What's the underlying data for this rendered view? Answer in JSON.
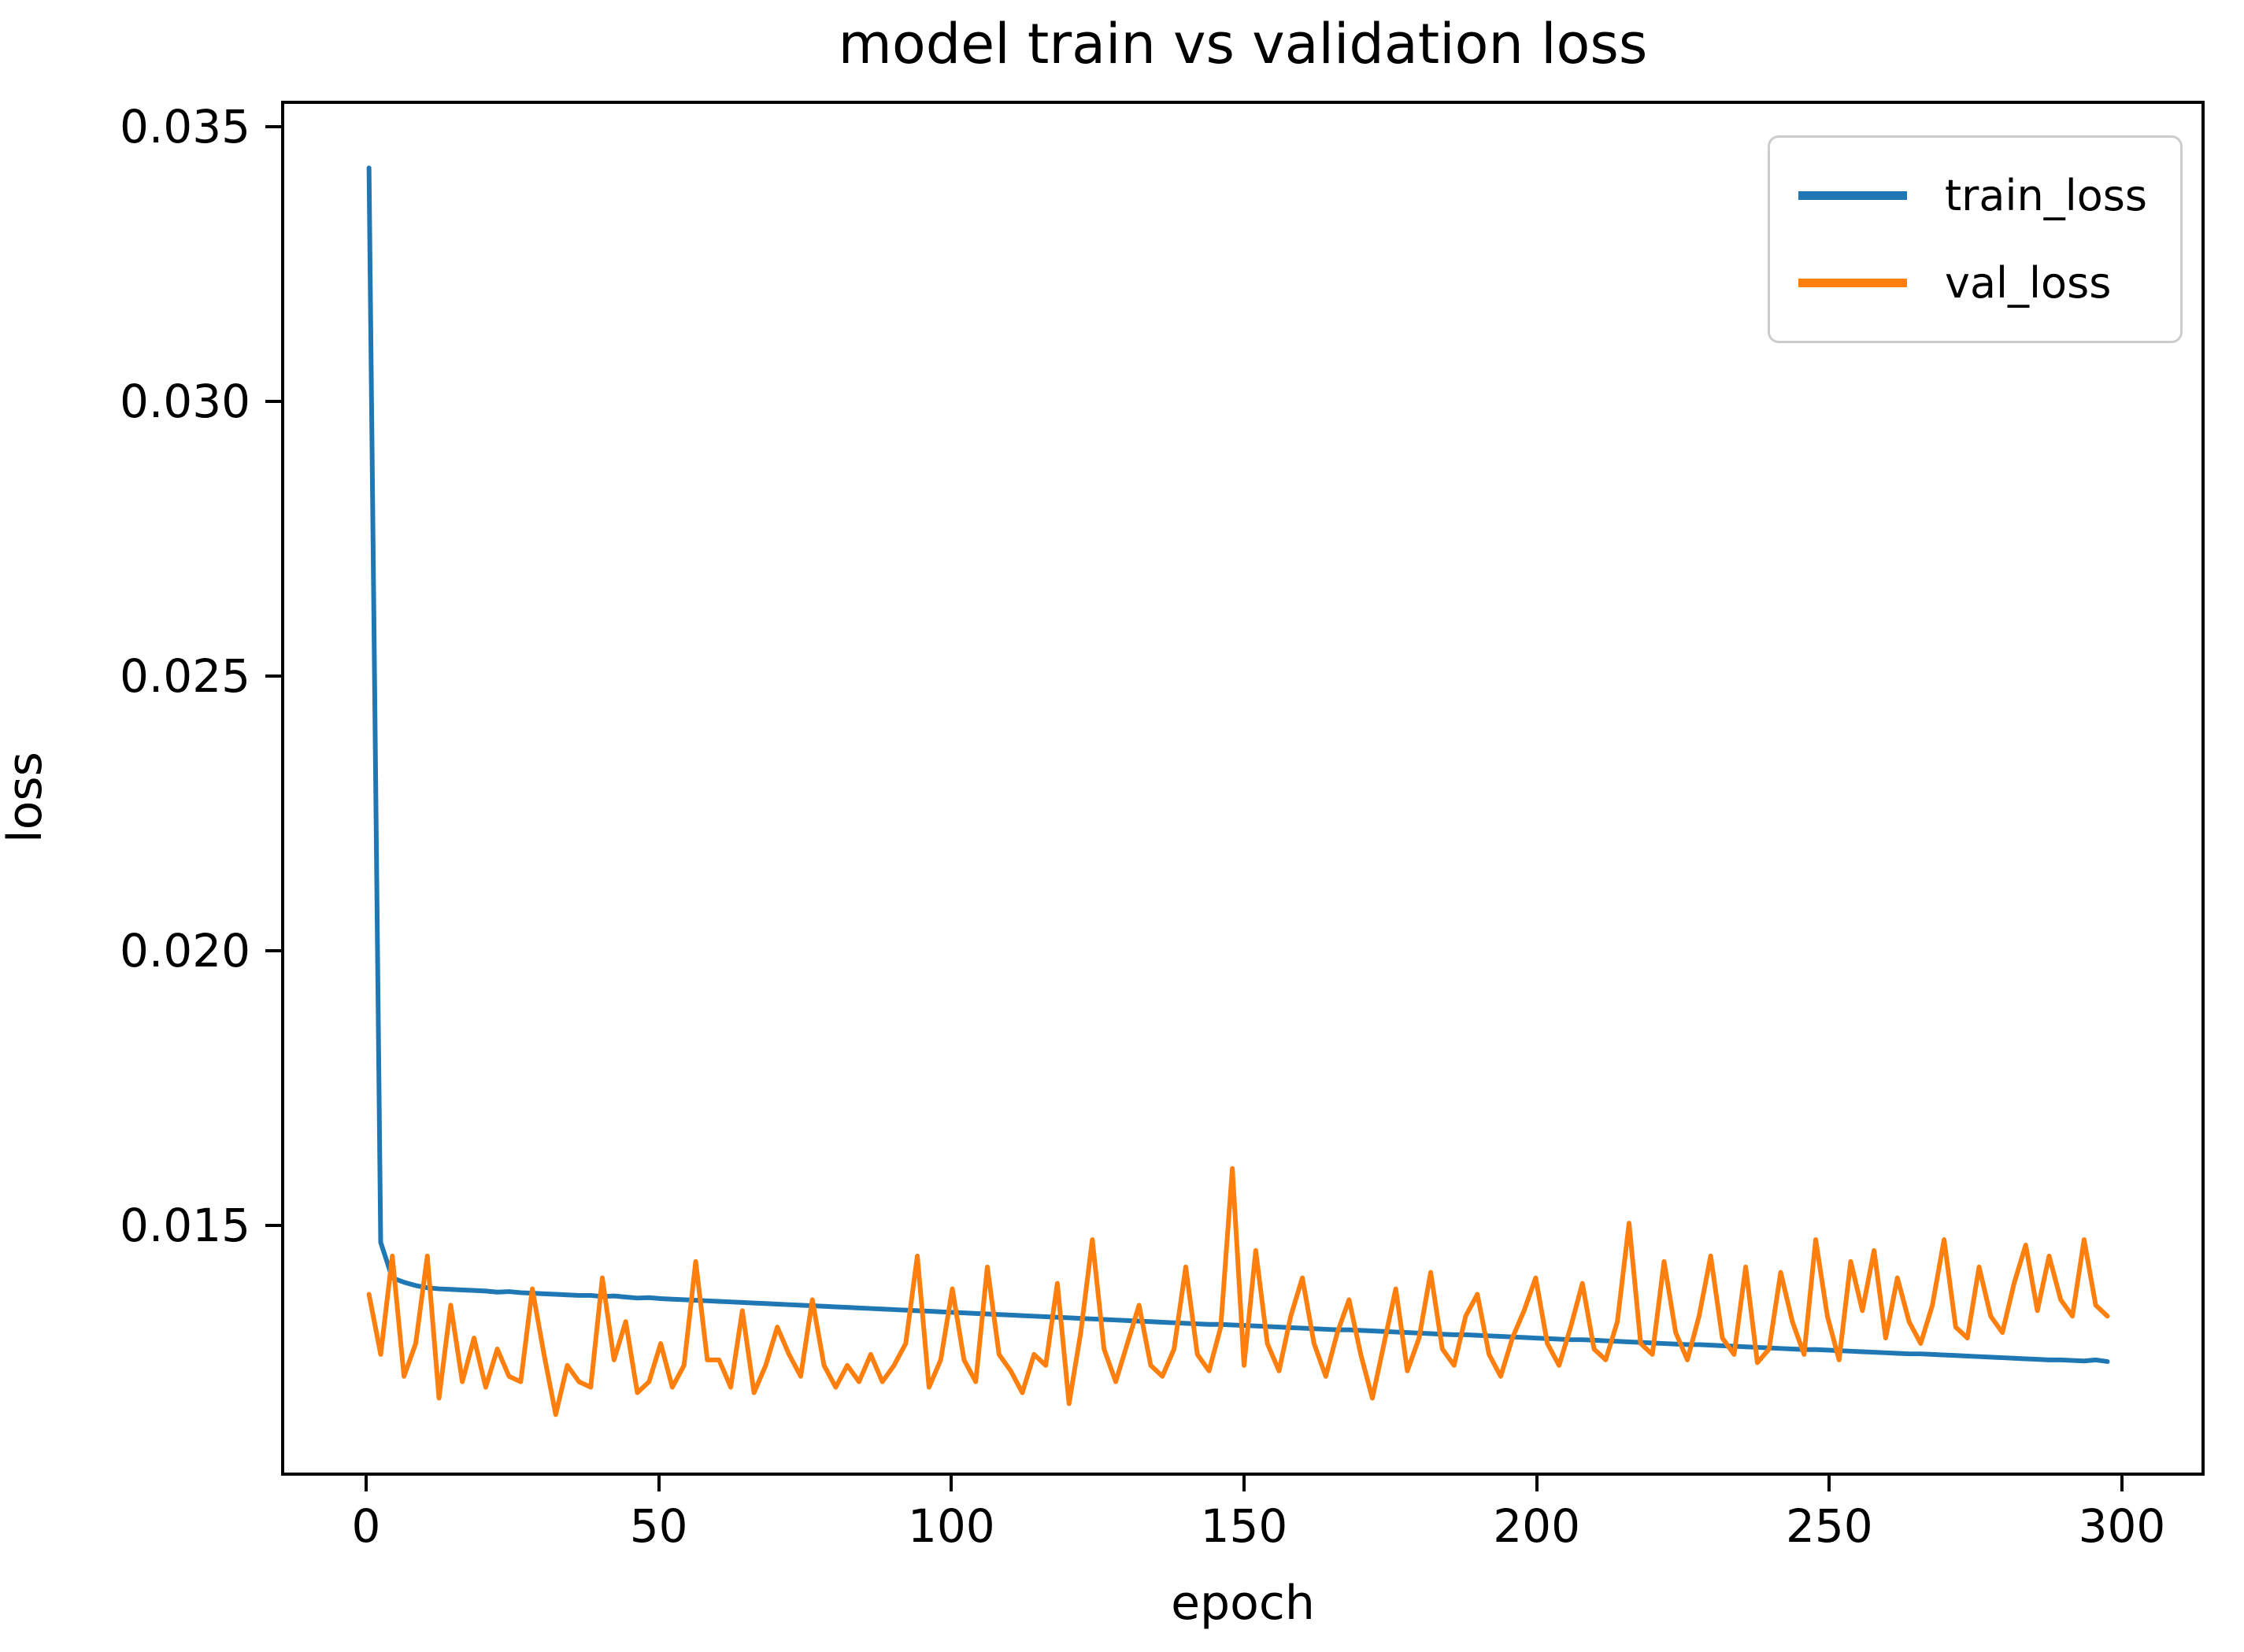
{
  "figure": {
    "title": "model train vs validation loss"
  },
  "chart_data": {
    "type": "line",
    "title": "model train vs validation loss",
    "xlabel": "epoch",
    "ylabel": "loss",
    "xlim": [
      -14.53,
      314.13
    ],
    "ylim": [
      0.01044,
      0.03547
    ],
    "x_ticks": [
      0,
      50,
      100,
      150,
      200,
      250,
      300
    ],
    "x_tick_labels": [
      "0",
      "50",
      "100",
      "150",
      "200",
      "250",
      "300"
    ],
    "y_ticks": [
      0.035,
      0.03,
      0.025,
      0.02,
      0.015
    ],
    "y_tick_labels": [
      "0.035",
      "0.030",
      "0.025",
      "0.020",
      "0.015"
    ],
    "grid": false,
    "legend_position": "upper right",
    "x": [
      0,
      2,
      4,
      6,
      8,
      10,
      12,
      14,
      16,
      18,
      20,
      22,
      24,
      26,
      28,
      30,
      32,
      34,
      36,
      38,
      40,
      42,
      44,
      46,
      48,
      50,
      52,
      54,
      56,
      58,
      60,
      62,
      64,
      66,
      68,
      70,
      72,
      74,
      76,
      78,
      80,
      82,
      84,
      86,
      88,
      90,
      92,
      94,
      96,
      98,
      100,
      102,
      104,
      106,
      108,
      110,
      112,
      114,
      116,
      118,
      120,
      122,
      124,
      126,
      128,
      130,
      132,
      134,
      136,
      138,
      140,
      142,
      144,
      146,
      148,
      150,
      152,
      154,
      156,
      158,
      160,
      162,
      164,
      166,
      168,
      170,
      172,
      174,
      176,
      178,
      180,
      182,
      184,
      186,
      188,
      190,
      192,
      194,
      196,
      198,
      200,
      202,
      204,
      206,
      208,
      210,
      212,
      214,
      216,
      218,
      220,
      222,
      224,
      226,
      228,
      230,
      232,
      234,
      236,
      238,
      240,
      242,
      244,
      246,
      248,
      250,
      252,
      254,
      256,
      258,
      260,
      262,
      264,
      266,
      268,
      270,
      272,
      274,
      276,
      278,
      280,
      282,
      284,
      286,
      288,
      290,
      292,
      294,
      296,
      298
    ],
    "series": [
      {
        "name": "train_loss",
        "color": "#1f77b4",
        "values": [
          0.0343,
          0.01465,
          0.014,
          0.01392,
          0.01386,
          0.01382,
          0.0138,
          0.01379,
          0.01378,
          0.01377,
          0.01376,
          0.01374,
          0.01375,
          0.01373,
          0.01372,
          0.01371,
          0.0137,
          0.01369,
          0.01368,
          0.01368,
          0.01366,
          0.01367,
          0.01365,
          0.01363,
          0.01364,
          0.01362,
          0.01361,
          0.0136,
          0.01359,
          0.01358,
          0.01357,
          0.01356,
          0.01355,
          0.01354,
          0.01353,
          0.01352,
          0.01351,
          0.0135,
          0.01349,
          0.01348,
          0.01347,
          0.01346,
          0.01345,
          0.01344,
          0.01343,
          0.01342,
          0.01341,
          0.0134,
          0.01339,
          0.01338,
          0.01337,
          0.01336,
          0.01335,
          0.01334,
          0.01333,
          0.01332,
          0.01331,
          0.0133,
          0.01329,
          0.01328,
          0.01327,
          0.01326,
          0.01325,
          0.01324,
          0.01323,
          0.01322,
          0.01321,
          0.0132,
          0.01319,
          0.01318,
          0.01317,
          0.01316,
          0.01315,
          0.01315,
          0.01314,
          0.01313,
          0.01312,
          0.01311,
          0.0131,
          0.01309,
          0.01308,
          0.01307,
          0.01306,
          0.01305,
          0.01305,
          0.01304,
          0.01303,
          0.01302,
          0.01301,
          0.013,
          0.01299,
          0.01298,
          0.01297,
          0.01296,
          0.01296,
          0.01295,
          0.01294,
          0.01293,
          0.01292,
          0.01291,
          0.0129,
          0.01289,
          0.01288,
          0.01287,
          0.01287,
          0.01286,
          0.01285,
          0.01284,
          0.01283,
          0.01282,
          0.01281,
          0.0128,
          0.01279,
          0.01278,
          0.01278,
          0.01277,
          0.01276,
          0.01275,
          0.01274,
          0.01273,
          0.01272,
          0.01271,
          0.0127,
          0.01269,
          0.01269,
          0.01268,
          0.01267,
          0.01266,
          0.01265,
          0.01264,
          0.01263,
          0.01262,
          0.01261,
          0.01261,
          0.0126,
          0.01259,
          0.01258,
          0.01257,
          0.01256,
          0.01255,
          0.01254,
          0.01253,
          0.01252,
          0.01251,
          0.0125,
          0.0125,
          0.01249,
          0.01248,
          0.0125,
          0.01247
        ]
      },
      {
        "name": "val_loss",
        "color": "#ff7f0e",
        "values": [
          0.0137,
          0.0126,
          0.0144,
          0.0122,
          0.0128,
          0.0144,
          0.0118,
          0.0135,
          0.0121,
          0.0129,
          0.012,
          0.0127,
          0.0122,
          0.0121,
          0.0138,
          0.0126,
          0.0115,
          0.0124,
          0.0121,
          0.012,
          0.014,
          0.0125,
          0.0132,
          0.0119,
          0.0121,
          0.0128,
          0.012,
          0.0124,
          0.0143,
          0.0125,
          0.0125,
          0.012,
          0.0134,
          0.0119,
          0.0124,
          0.0131,
          0.0126,
          0.0122,
          0.0136,
          0.0124,
          0.012,
          0.0124,
          0.0121,
          0.0126,
          0.0121,
          0.0124,
          0.0128,
          0.0144,
          0.012,
          0.0125,
          0.0138,
          0.0125,
          0.0121,
          0.0142,
          0.0126,
          0.0123,
          0.0119,
          0.0126,
          0.0124,
          0.0139,
          0.0117,
          0.013,
          0.0147,
          0.0127,
          0.0121,
          0.0128,
          0.0135,
          0.0124,
          0.0122,
          0.0127,
          0.0142,
          0.0126,
          0.0123,
          0.0131,
          0.016,
          0.0124,
          0.0145,
          0.0128,
          0.0123,
          0.0133,
          0.014,
          0.0128,
          0.0122,
          0.013,
          0.0136,
          0.0126,
          0.0118,
          0.0128,
          0.0138,
          0.0123,
          0.0129,
          0.0141,
          0.0127,
          0.0124,
          0.0133,
          0.0137,
          0.0126,
          0.0122,
          0.0129,
          0.0134,
          0.014,
          0.0128,
          0.0124,
          0.0131,
          0.0139,
          0.0127,
          0.0125,
          0.0132,
          0.015,
          0.0128,
          0.0126,
          0.0143,
          0.013,
          0.0125,
          0.0133,
          0.0144,
          0.0129,
          0.0126,
          0.0142,
          0.01245,
          0.0127,
          0.0141,
          0.0132,
          0.0126,
          0.0147,
          0.0133,
          0.0125,
          0.0143,
          0.0134,
          0.0145,
          0.0129,
          0.014,
          0.0132,
          0.0128,
          0.0135,
          0.0147,
          0.0131,
          0.0129,
          0.0142,
          0.0133,
          0.013,
          0.0139,
          0.0146,
          0.0134,
          0.0144,
          0.0136,
          0.0133,
          0.0147,
          0.0135,
          0.0133
        ]
      }
    ]
  }
}
